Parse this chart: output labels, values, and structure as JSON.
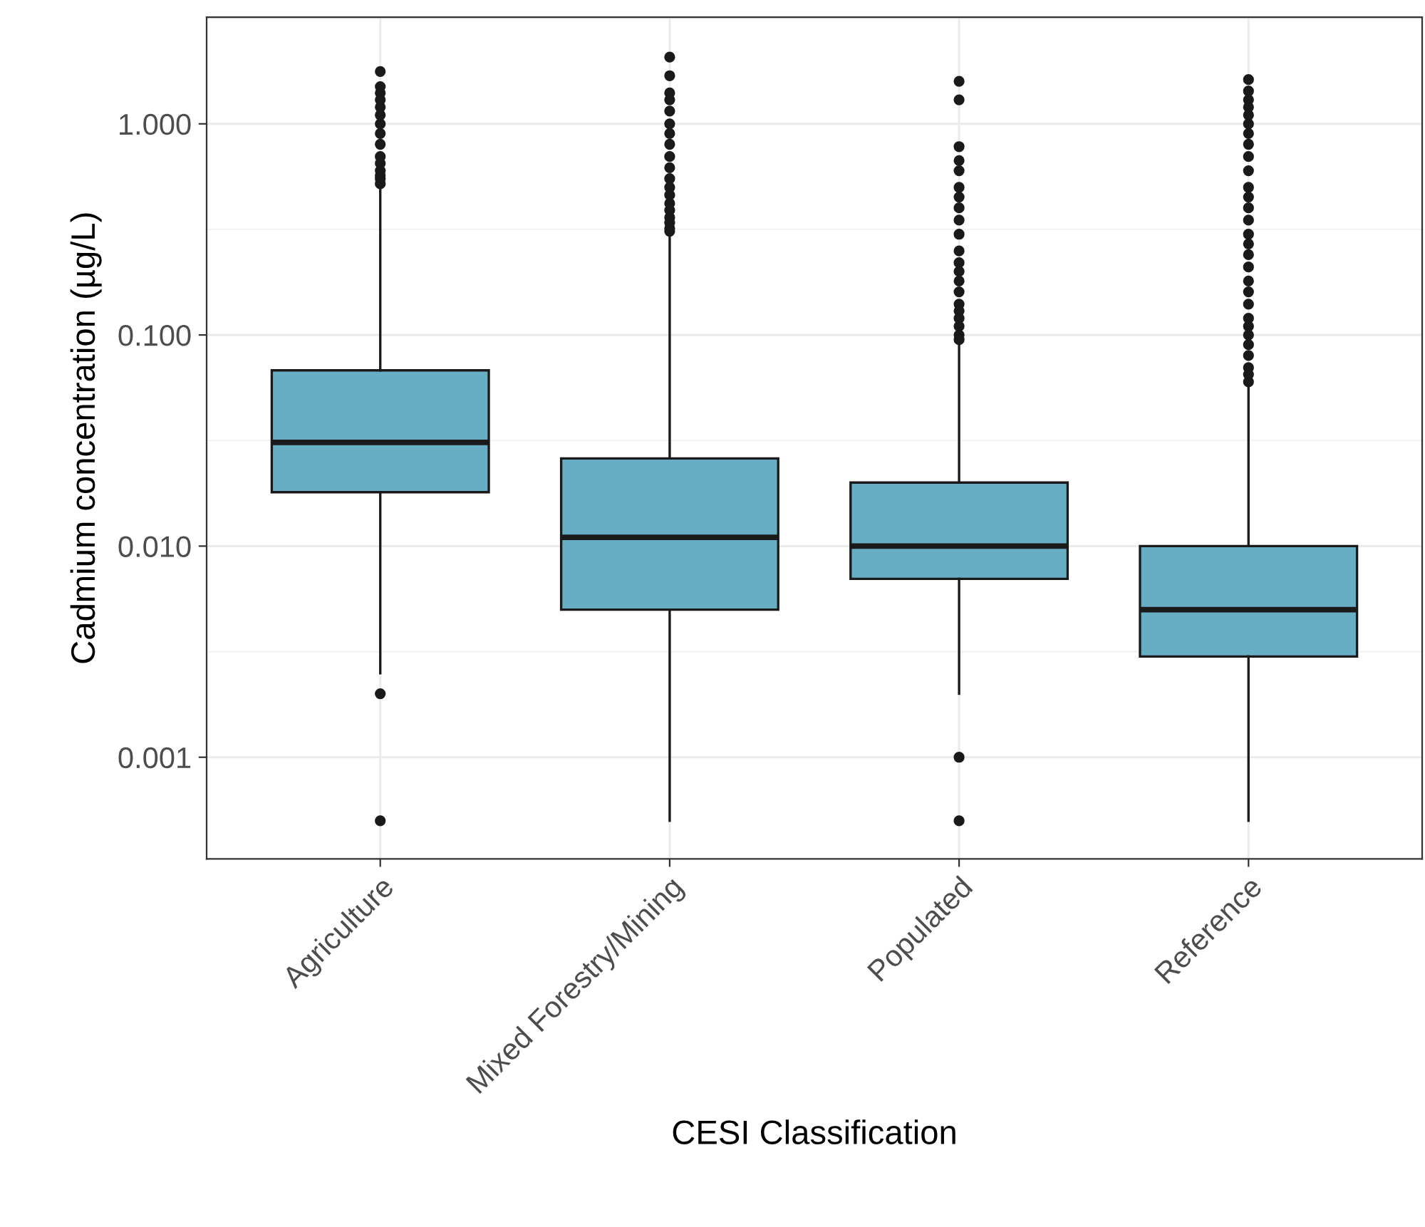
{
  "chart_data": {
    "type": "box",
    "xlabel": "CESI Classification",
    "ylabel": "Cadmium concentration (µg/L)",
    "categories": [
      "Agriculture",
      "Mixed Forestry/Mining",
      "Populated",
      "Reference"
    ],
    "color": "#67adc4",
    "log": "y",
    "ylim": [
      0.00033,
      3.2
    ],
    "yticks": [
      {
        "value": 0.001,
        "label": "0.001"
      },
      {
        "value": 0.01,
        "label": "0.010"
      },
      {
        "value": 0.1,
        "label": "0.100"
      },
      {
        "value": 1,
        "label": "1.000"
      }
    ],
    "grid": true,
    "boxes": [
      {
        "low": 0.0025,
        "q1": 0.018,
        "median": 0.031,
        "q3": 0.068,
        "high": 0.5,
        "outliers": [
          1.77,
          1.5,
          1.4,
          1.3,
          1.2,
          1.1,
          1.0,
          0.9,
          0.8,
          0.7,
          0.65,
          0.6,
          0.57,
          0.55,
          0.52,
          0.002,
          0.0005
        ]
      },
      {
        "low": 0.0005,
        "q1": 0.005,
        "median": 0.011,
        "q3": 0.026,
        "high": 0.3,
        "outliers": [
          2.07,
          1.69,
          1.4,
          1.3,
          1.15,
          1.0,
          0.9,
          0.8,
          0.7,
          0.62,
          0.55,
          0.5,
          0.46,
          0.42,
          0.39,
          0.36,
          0.34,
          0.32,
          0.31
        ]
      },
      {
        "low": 0.002,
        "q1": 0.007,
        "median": 0.01,
        "q3": 0.02,
        "high": 0.094,
        "outliers": [
          1.59,
          1.3,
          0.78,
          0.67,
          0.6,
          0.5,
          0.45,
          0.4,
          0.35,
          0.3,
          0.25,
          0.22,
          0.2,
          0.18,
          0.16,
          0.14,
          0.13,
          0.12,
          0.11,
          0.1,
          0.095,
          0.001,
          0.0005
        ]
      },
      {
        "low": 0.0005,
        "q1": 0.003,
        "median": 0.005,
        "q3": 0.01,
        "high": 0.058,
        "outliers": [
          1.62,
          1.43,
          1.3,
          1.2,
          1.1,
          1.0,
          0.9,
          0.8,
          0.7,
          0.6,
          0.5,
          0.45,
          0.4,
          0.35,
          0.3,
          0.27,
          0.24,
          0.21,
          0.18,
          0.16,
          0.14,
          0.12,
          0.11,
          0.1,
          0.09,
          0.08,
          0.07,
          0.065,
          0.06
        ]
      }
    ]
  }
}
